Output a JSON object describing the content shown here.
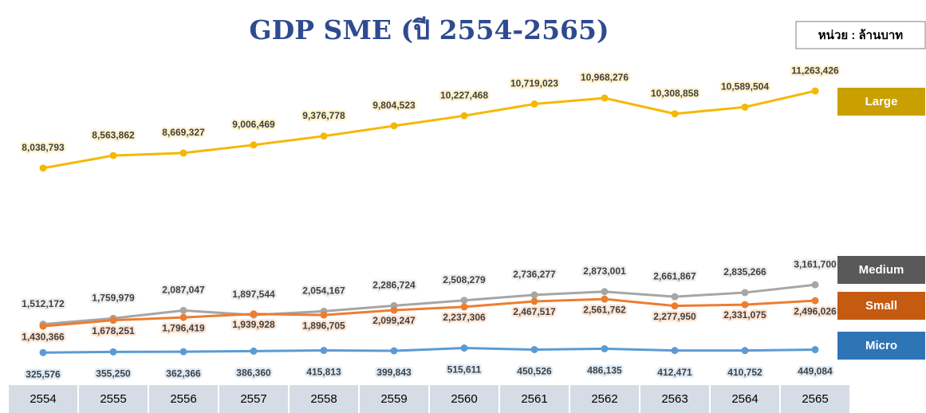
{
  "chart_data": {
    "type": "line",
    "title": "GDP SME (ปี 2554-2565)",
    "unit": "หน่วย : ล้านบาท",
    "categories": [
      "2554",
      "2555",
      "2556",
      "2557",
      "2558",
      "2559",
      "2560",
      "2561",
      "2562",
      "2563",
      "2564",
      "2565"
    ],
    "ylim": [
      0,
      12000000
    ],
    "series": [
      {
        "name": "Large",
        "color": "#f5b800",
        "legend_color": "#c9a000",
        "values": [
          8038793,
          8563862,
          8669327,
          9006469,
          9376778,
          9804523,
          10227468,
          10719023,
          10968276,
          10308858,
          10589504,
          11263426
        ],
        "value_labels": [
          "8,038,793",
          "8,563,862",
          "8,669,327",
          "9,006,469",
          "9,376,778",
          "9,804,523",
          "10,227,468",
          "10,719,023",
          "10,968,276",
          "10,308,858",
          "10,589,504",
          "11,263,426"
        ]
      },
      {
        "name": "Medium",
        "color": "#a6a6a6",
        "legend_color": "#595959",
        "values": [
          1512172,
          1759979,
          2087047,
          1897544,
          2054167,
          2286724,
          2508279,
          2736277,
          2873001,
          2661867,
          2835266,
          3161700
        ],
        "value_labels": [
          "1,512,172",
          "1,759,979",
          "2,087,047",
          "1,897,544",
          "2,054,167",
          "2,286,724",
          "2,508,279",
          "2,736,277",
          "2,873,001",
          "2,661,867",
          "2,835,266",
          "3,161,700"
        ]
      },
      {
        "name": "Small",
        "color": "#ed7d31",
        "legend_color": "#c55a11",
        "values": [
          1430366,
          1678251,
          1796419,
          1939928,
          1896705,
          2099247,
          2237306,
          2467517,
          2561762,
          2277950,
          2331075,
          2496026
        ],
        "value_labels": [
          "1,430,366",
          "1,678,251",
          "1,796,419",
          "1,939,928",
          "1,896,705",
          "2,099,247",
          "2,237,306",
          "2,467,517",
          "2,561,762",
          "2,277,950",
          "2,331,075",
          "2,496,026"
        ]
      },
      {
        "name": "Micro",
        "color": "#5b9bd5",
        "legend_color": "#2e75b6",
        "values": [
          325576,
          355250,
          362366,
          386360,
          415813,
          399843,
          515611,
          450526,
          486135,
          412471,
          410752,
          449084
        ],
        "value_labels": [
          "325,576",
          "355,250",
          "362,366",
          "386,360",
          "415,813",
          "399,843",
          "515,611",
          "450,526",
          "486,135",
          "412,471",
          "410,752",
          "449,084"
        ]
      }
    ]
  }
}
